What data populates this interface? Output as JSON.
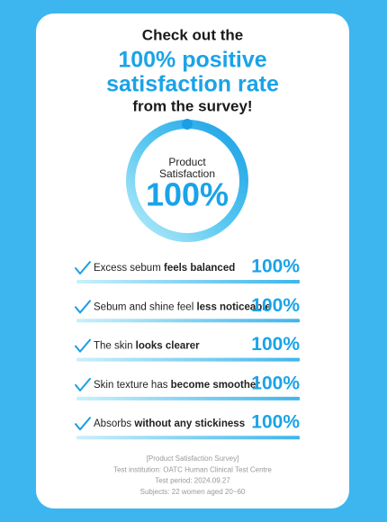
{
  "header": {
    "intro": "Check out the",
    "highlight": [
      "100% positive",
      "satisfaction rate"
    ],
    "outro": "from the survey!"
  },
  "gauge": {
    "label": [
      "Product",
      "Satisfaction"
    ],
    "value": "100%"
  },
  "items": [
    {
      "text": "Excess sebum ",
      "bold": "feels balanced",
      "value": "100%"
    },
    {
      "text": "Sebum and shine feel ",
      "bold": "less noticeable",
      "value": "100%"
    },
    {
      "text": "The skin ",
      "bold": "looks clearer",
      "value": "100%"
    },
    {
      "text": "Skin texture has ",
      "bold": "become smoother",
      "value": "100%"
    },
    {
      "text": "Absorbs ",
      "bold": "without any stickiness",
      "value": "100%"
    }
  ],
  "footer": [
    "[Product Satisfaction Survey]",
    "Test institution: OATC Human Clinical Test Centre",
    "Test period: 2024.09.27",
    "Subjects: 22 women aged 20~60"
  ]
}
